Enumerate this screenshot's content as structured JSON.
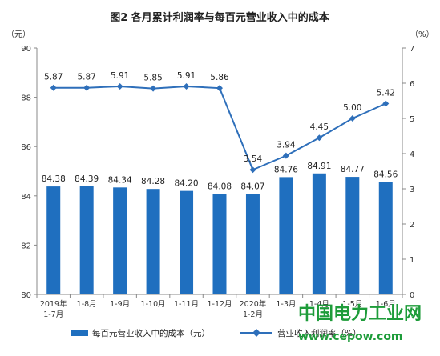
{
  "chart_data": {
    "type": "bar+line",
    "title": "图2  各月累计利润率与每百元营业收入中的成本",
    "left_unit": "（元）",
    "right_unit": "（%）",
    "categories": [
      [
        "2019年",
        "1-7月"
      ],
      [
        "1-8月"
      ],
      [
        "1-9月"
      ],
      [
        "1-10月"
      ],
      [
        "1-11月"
      ],
      [
        "1-12月"
      ],
      [
        "2020年",
        "1-2月"
      ],
      [
        "1-3月"
      ],
      [
        "1-4月"
      ],
      [
        "1-5月"
      ],
      [
        "1-6月"
      ]
    ],
    "y_left": {
      "min": 80,
      "max": 90,
      "ticks": [
        "80",
        "82",
        "84",
        "86",
        "88",
        "90"
      ]
    },
    "y_right": {
      "min": 0,
      "max": 7,
      "ticks": [
        "0",
        "1",
        "2",
        "3",
        "4",
        "5",
        "6",
        "7"
      ]
    },
    "series": [
      {
        "name": "每百元营业收入中的成本（元）",
        "type": "bar",
        "axis": "left",
        "color": "#1f6fbf",
        "values": [
          84.38,
          84.39,
          84.34,
          84.28,
          84.2,
          84.08,
          84.07,
          84.76,
          84.91,
          84.77,
          84.56
        ],
        "labels": [
          "84.38",
          "84.39",
          "84.34",
          "84.28",
          "84.20",
          "84.08",
          "84.07",
          "84.76",
          "84.91",
          "84.77",
          "84.56"
        ]
      },
      {
        "name": "营业收入利润率（%）",
        "type": "line",
        "axis": "right",
        "color": "#2e6fba",
        "values": [
          5.87,
          5.87,
          5.91,
          5.85,
          5.91,
          5.86,
          3.54,
          3.94,
          4.45,
          5.0,
          5.42
        ],
        "labels": [
          "5.87",
          "5.87",
          "5.91",
          "5.85",
          "5.91",
          "5.86",
          "3.54",
          "3.94",
          "4.45",
          "5.00",
          "5.42"
        ]
      }
    ],
    "grid": false,
    "legend": "bottom"
  },
  "legend": {
    "bar_label": "每百元营业收入中的成本（元）",
    "line_label": "营业收入利润率（%）"
  },
  "watermark": {
    "line1": "中国电力工业网",
    "line2": "www.cepow.com",
    "color": "#1e9c3a"
  }
}
